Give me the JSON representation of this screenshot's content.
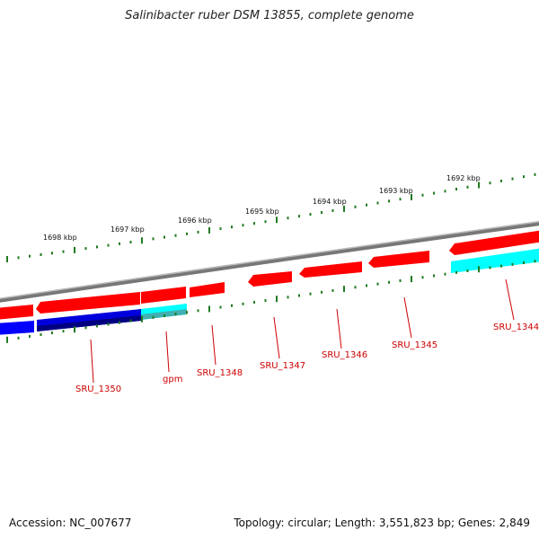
{
  "title": "Salinibacter ruber DSM 13855, complete genome",
  "footer": {
    "accession": "Accession: NC_007677",
    "summary": "Topology: circular; Length: 3,551,823 bp; Genes: 2,849"
  },
  "colors": {
    "forward_cds": "#ff0000",
    "reverse_cds": "#0000ff",
    "forward_rna": "#00ffff",
    "backbone": "#888888",
    "ticks": "#1f7a1f",
    "label": "#cc0000"
  },
  "scale_labels": [
    "1698 kbp",
    "1697 kbp",
    "1696 kbp",
    "1695 kbp",
    "1694 kbp",
    "1693 kbp",
    "1692 kbp"
  ],
  "genes": [
    {
      "name": "SRU_1350",
      "strand": "reverse",
      "type": "cds"
    },
    {
      "name": "gpm",
      "strand": "reverse",
      "type": "rna"
    },
    {
      "name": "SRU_1348",
      "strand": "forward",
      "type": "cds"
    },
    {
      "name": "SRU_1347",
      "strand": "forward",
      "type": "cds"
    },
    {
      "name": "SRU_1346",
      "strand": "forward",
      "type": "cds"
    },
    {
      "name": "SRU_1345",
      "strand": "forward",
      "type": "cds"
    },
    {
      "name": "SRU_1344",
      "strand": "reverse",
      "type": "rna"
    }
  ]
}
